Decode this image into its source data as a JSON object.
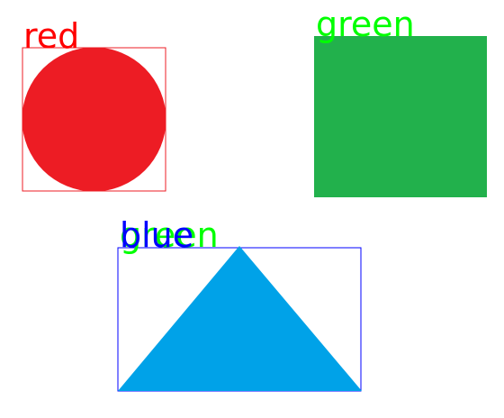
{
  "shapes": [
    {
      "kind": "circle",
      "fill": "#ed1c24"
    },
    {
      "kind": "square",
      "fill": "#22b14c"
    },
    {
      "kind": "triangle",
      "fill": "#00a2e8"
    }
  ],
  "boxes": [
    {
      "stroke": "#ed1c24"
    },
    {
      "stroke": "#0000ff"
    }
  ],
  "labels": [
    {
      "text": "red",
      "color": "#ff0000"
    },
    {
      "text": "green",
      "color": "#00ff00"
    },
    {
      "text": "green",
      "color": "#00ff00"
    },
    {
      "text": "blue",
      "color": "#0000ff"
    }
  ]
}
